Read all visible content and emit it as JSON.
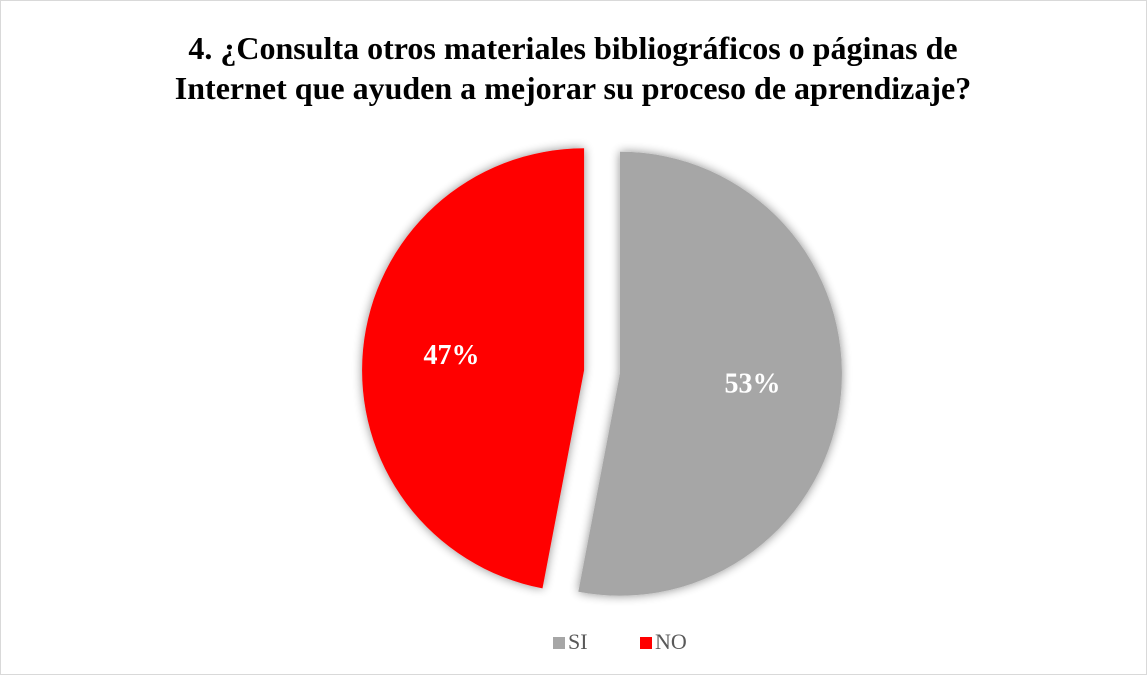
{
  "chart_data": {
    "type": "pie",
    "title": "4. ¿Consulta otros materiales bibliográficos o páginas de Internet que ayuden a mejorar su proceso de aprendizaje?",
    "categories": [
      "SI",
      "NO"
    ],
    "values": [
      53,
      47
    ],
    "value_labels": [
      "53%",
      "47%"
    ],
    "colors": [
      "#a6a6a6",
      "#ff0000"
    ],
    "legend": "bottom"
  }
}
